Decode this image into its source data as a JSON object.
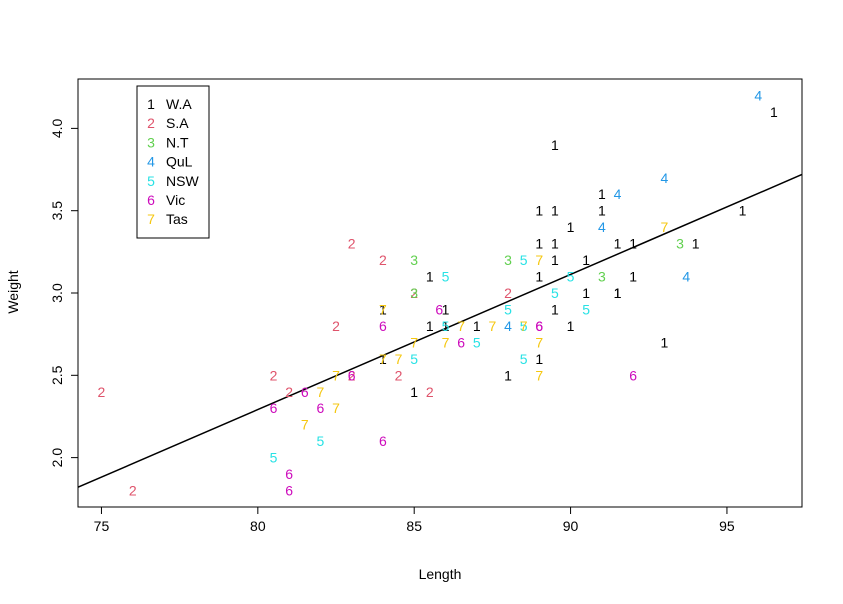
{
  "chart_data": {
    "type": "scatter",
    "title": "",
    "xlabel": "Length",
    "ylabel": "Weight",
    "xlim": [
      74.25,
      97.4
    ],
    "ylim": [
      1.7,
      4.3
    ],
    "xticks": [
      "75",
      "80",
      "85",
      "90",
      "95"
    ],
    "yticks": [
      "2.0",
      "2.5",
      "3.0",
      "3.5",
      "4.0"
    ],
    "legend_position": "top-left",
    "grid": false,
    "series": [
      {
        "code": "1",
        "name": "W.A",
        "color": "#000000",
        "points": [
          [
            89.5,
            3.9
          ],
          [
            96.5,
            4.1
          ],
          [
            91,
            3.6
          ],
          [
            89,
            3.5
          ],
          [
            89.5,
            3.5
          ],
          [
            91,
            3.5
          ],
          [
            95.5,
            3.5
          ],
          [
            90,
            3.4
          ],
          [
            89,
            3.3
          ],
          [
            89.5,
            3.3
          ],
          [
            91.5,
            3.3
          ],
          [
            92,
            3.3
          ],
          [
            94,
            3.3
          ],
          [
            85.5,
            3.1
          ],
          [
            89,
            3.1
          ],
          [
            89.5,
            3.2
          ],
          [
            90.5,
            3.2
          ],
          [
            92,
            3.1
          ],
          [
            90.5,
            3.0
          ],
          [
            91.5,
            3.0
          ],
          [
            91.5,
            3.0
          ],
          [
            84,
            2.9
          ],
          [
            86,
            2.9
          ],
          [
            89.5,
            2.9
          ],
          [
            85.5,
            2.8
          ],
          [
            86,
            2.8
          ],
          [
            87,
            2.8
          ],
          [
            90,
            2.8
          ],
          [
            84,
            2.6
          ],
          [
            89,
            2.6
          ],
          [
            88,
            2.5
          ],
          [
            93,
            2.7
          ],
          [
            85,
            2.4
          ]
        ]
      },
      {
        "code": "2",
        "name": "S.A",
        "color": "#DF536B",
        "points": [
          [
            83,
            3.3
          ],
          [
            84,
            3.2
          ],
          [
            82.5,
            2.8
          ],
          [
            85,
            3.0
          ],
          [
            88,
            3.0
          ],
          [
            80.5,
            2.5
          ],
          [
            84.5,
            2.5
          ],
          [
            83,
            2.5
          ],
          [
            81,
            2.4
          ],
          [
            85.5,
            2.4
          ],
          [
            75,
            2.4
          ],
          [
            76,
            1.8
          ]
        ]
      },
      {
        "code": "3",
        "name": "N.T",
        "color": "#61D04F",
        "points": [
          [
            85,
            3.2
          ],
          [
            85,
            3.0
          ],
          [
            88,
            3.2
          ],
          [
            91,
            3.1
          ],
          [
            93.5,
            3.3
          ]
        ]
      },
      {
        "code": "4",
        "name": "QuL",
        "color": "#2297E6",
        "points": [
          [
            96,
            4.2
          ],
          [
            93,
            3.7
          ],
          [
            91.5,
            3.6
          ],
          [
            91,
            3.4
          ],
          [
            93.7,
            3.1
          ],
          [
            88,
            2.8
          ]
        ]
      },
      {
        "code": "5",
        "name": "NSW",
        "color": "#28E2E5",
        "points": [
          [
            86,
            3.1
          ],
          [
            88.5,
            3.2
          ],
          [
            90,
            3.1
          ],
          [
            89.5,
            3.0
          ],
          [
            88,
            2.9
          ],
          [
            90.5,
            2.9
          ],
          [
            86,
            2.8
          ],
          [
            88.5,
            2.8
          ],
          [
            87,
            2.7
          ],
          [
            85,
            2.6
          ],
          [
            88.5,
            2.6
          ],
          [
            80.5,
            2.0
          ],
          [
            82,
            2.1
          ]
        ]
      },
      {
        "code": "6",
        "name": "Vic",
        "color": "#CD0BBC",
        "points": [
          [
            85.8,
            2.9
          ],
          [
            84,
            2.8
          ],
          [
            89,
            2.8
          ],
          [
            89,
            2.8
          ],
          [
            86.5,
            2.7
          ],
          [
            83,
            2.5
          ],
          [
            81.5,
            2.4
          ],
          [
            80.5,
            2.3
          ],
          [
            82,
            2.3
          ],
          [
            92,
            2.5
          ],
          [
            84,
            2.1
          ],
          [
            81,
            1.9
          ],
          [
            81,
            1.8
          ]
        ]
      },
      {
        "code": "7",
        "name": "Tas",
        "color": "#F5C710",
        "points": [
          [
            93,
            3.4
          ],
          [
            89,
            3.2
          ],
          [
            84,
            2.9
          ],
          [
            86.5,
            2.8
          ],
          [
            87.5,
            2.8
          ],
          [
            88.5,
            2.8
          ],
          [
            85,
            2.7
          ],
          [
            86,
            2.7
          ],
          [
            89,
            2.7
          ],
          [
            84,
            2.6
          ],
          [
            84.5,
            2.6
          ],
          [
            82.5,
            2.5
          ],
          [
            82,
            2.4
          ],
          [
            82.5,
            2.3
          ],
          [
            81.5,
            2.2
          ],
          [
            89,
            2.5
          ]
        ]
      }
    ],
    "regression_line": {
      "x": [
        74.25,
        97.4
      ],
      "y": [
        1.82,
        3.72
      ]
    }
  }
}
